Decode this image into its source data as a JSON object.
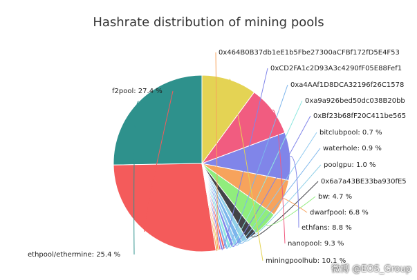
{
  "watermark": "微博 @EOS_Group",
  "chart_data": {
    "type": "pie",
    "title": "Hashrate distribution of mining pools",
    "slices": [
      {
        "label": "ethpool/ethermine: 25.4 %",
        "value": 25.4,
        "color": "#2e918c"
      },
      {
        "label": "f2pool: 27.4 %",
        "value": 27.4,
        "color": "#f45b5b"
      },
      {
        "label": "0x464B0B37db1eE1b5Fbe27300aCFBf172fD5E4F53",
        "value": 0.3,
        "color": "#f7a35c"
      },
      {
        "label": "",
        "value": 0.3,
        "color": "#e4d354"
      },
      {
        "label": "",
        "value": 0.3,
        "color": "#f15c80"
      },
      {
        "label": "0xCD2FA1c2D93A3c4290fF05E88Fef1",
        "value": 0.4,
        "color": "#8085e9"
      },
      {
        "label": "",
        "value": 0.4,
        "color": "#f45b5b"
      },
      {
        "label": "0xa4AAf1D8DCA32196f26C1578",
        "value": 0.5,
        "color": "#7cb5ec"
      },
      {
        "label": "0xa9a926bed50dc038B20bb",
        "value": 0.6,
        "color": "#91e8e1"
      },
      {
        "label": "0xBf23b68fF20C411be565",
        "value": 0.6,
        "color": "#8085e9"
      },
      {
        "label": "bitclubpool: 0.7 %",
        "value": 0.7,
        "color": "#90caf0"
      },
      {
        "label": "waterhole: 0.9 %",
        "value": 0.9,
        "color": "#7cb5ec"
      },
      {
        "label": "poolgpu: 1.0 %",
        "value": 1.0,
        "color": "#91d0e8"
      },
      {
        "label": "0x6a7a43BE33ba930fE5",
        "value": 2.0,
        "color": "#434348"
      },
      {
        "label": "bw: 4.7 %",
        "value": 4.7,
        "color": "#90ed7d"
      },
      {
        "label": "dwarfpool: 6.8 %",
        "value": 6.8,
        "color": "#f7a35c"
      },
      {
        "label": "ethfans: 8.8 %",
        "value": 8.8,
        "color": "#8085e9"
      },
      {
        "label": "nanopool: 9.3 %",
        "value": 9.3,
        "color": "#f15c80"
      },
      {
        "label": "miningpoolhub: 10.1 %",
        "value": 10.1,
        "color": "#e4d354"
      }
    ],
    "legend": "none"
  }
}
